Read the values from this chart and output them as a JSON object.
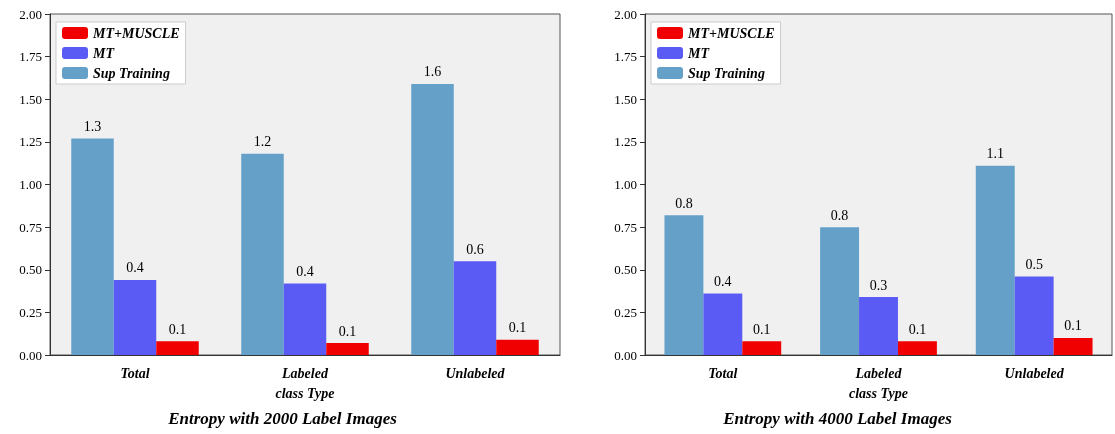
{
  "chart_data": [
    {
      "type": "bar",
      "title": "Entropy with 2000 Label Images",
      "categories": [
        "Total",
        "Labeled\nclass Type",
        "Unlabeled"
      ],
      "series": [
        {
          "name": "Sup Training",
          "color": "#64a0c8",
          "values": [
            1.27,
            1.18,
            1.59
          ],
          "value_labels": [
            "1.3",
            "1.2",
            "1.6"
          ]
        },
        {
          "name": "MT",
          "color": "#5a5af5",
          "values": [
            0.44,
            0.42,
            0.55
          ],
          "value_labels": [
            "0.4",
            "0.4",
            "0.6"
          ]
        },
        {
          "name": "MT+MUSCLE",
          "color": "#f00000",
          "values": [
            0.08,
            0.07,
            0.09
          ],
          "value_labels": [
            "0.1",
            "0.1",
            "0.1"
          ]
        }
      ],
      "ylim": [
        0,
        2
      ],
      "yticks": [
        {
          "value": 0,
          "label": "0.00"
        },
        0.25,
        {
          "value": 0.5,
          "label": "0.50"
        },
        0.75,
        {
          "value": 1,
          "label": "1.00"
        },
        1.25,
        {
          "value": 1.5,
          "label": "1.50"
        },
        1.75,
        {
          "value": 2,
          "label": "2.00"
        }
      ],
      "grid": false,
      "legend": "top left"
    },
    {
      "type": "bar",
      "title": "Entropy with 4000 Label Images",
      "categories": [
        "Total",
        "Labeled\nclass Type",
        "Unlabeled"
      ],
      "series": [
        {
          "name": "Sup Training",
          "color": "#64a0c8",
          "values": [
            0.82,
            0.75,
            1.11
          ],
          "value_labels": [
            "0.8",
            "0.8",
            "1.1"
          ]
        },
        {
          "name": "MT",
          "color": "#5a5af5",
          "values": [
            0.36,
            0.34,
            0.46
          ],
          "value_labels": [
            "0.4",
            "0.3",
            "0.5"
          ]
        },
        {
          "name": "MT+MUSCLE",
          "color": "#f00000",
          "values": [
            0.08,
            0.08,
            0.1
          ],
          "value_labels": [
            "0.1",
            "0.1",
            "0.1"
          ]
        }
      ],
      "ylim": [
        0,
        2
      ],
      "yticks": [
        {
          "value": 0,
          "label": "0.00"
        },
        0.25,
        {
          "value": 0.5,
          "label": "0.50"
        },
        0.75,
        {
          "value": 1,
          "label": "1.00"
        },
        1.25,
        {
          "value": 1.5,
          "label": "1.50"
        },
        1.75,
        {
          "value": 2,
          "label": "2.00"
        }
      ],
      "grid": false,
      "legend": "top left"
    }
  ]
}
